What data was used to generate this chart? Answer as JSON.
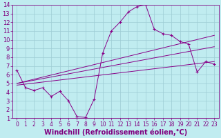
{
  "xlabel": "Windchill (Refroidissement éolien,°C)",
  "ylabel": "",
  "xlim": [
    -0.5,
    23.5
  ],
  "ylim": [
    1,
    14
  ],
  "xticks": [
    0,
    1,
    2,
    3,
    4,
    5,
    6,
    7,
    8,
    9,
    10,
    11,
    12,
    13,
    14,
    15,
    16,
    17,
    18,
    19,
    20,
    21,
    22,
    23
  ],
  "yticks": [
    1,
    2,
    3,
    4,
    5,
    6,
    7,
    8,
    9,
    10,
    11,
    12,
    13,
    14
  ],
  "bg_color": "#c0ecf0",
  "line_color": "#880088",
  "grid_color": "#9dccd4",
  "series1_x": [
    0,
    1,
    2,
    3,
    4,
    5,
    6,
    7,
    8,
    9,
    10,
    11,
    12,
    13,
    14,
    15,
    16,
    17,
    18,
    19,
    20,
    21,
    22,
    23
  ],
  "series1_y": [
    6.5,
    4.5,
    4.2,
    4.5,
    3.5,
    4.1,
    3.0,
    1.2,
    1.1,
    3.2,
    8.5,
    11.0,
    12.0,
    13.2,
    13.8,
    14.0,
    11.2,
    10.7,
    10.5,
    9.8,
    9.5,
    6.3,
    7.5,
    7.2
  ],
  "line2_x0": 0,
  "line2_x1": 23,
  "line2_y0": 4.8,
  "line2_y1": 7.5,
  "line3_x0": 0,
  "line3_x1": 23,
  "line3_y0": 5.0,
  "line3_y1": 9.2,
  "line4_x0": 0,
  "line4_x1": 23,
  "line4_y0": 5.0,
  "line4_y1": 10.5,
  "font_color": "#800080",
  "tick_fontsize": 6,
  "label_fontsize": 7
}
